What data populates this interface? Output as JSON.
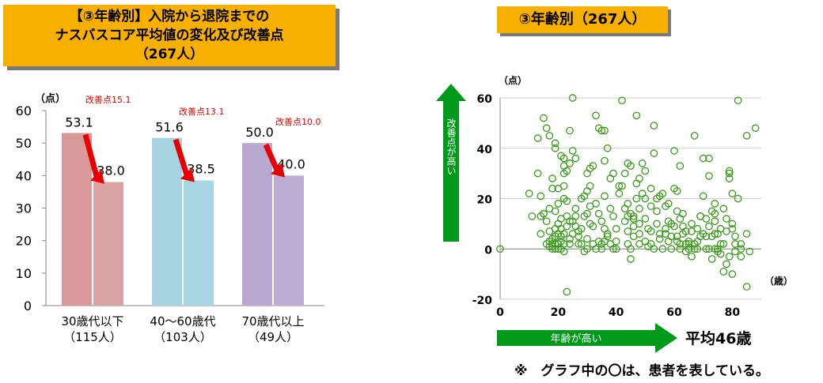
{
  "bar_title": {
    "line1": "【③年齢別】入院から退院までの",
    "line2": "ナスバスコア平均値の変化及び改善点",
    "line3": "（267人）"
  },
  "scatter_title": "③年齢別（267人）",
  "note": "※　グラフ中の〇は、患者を表している。",
  "avg_label": "平均46歳",
  "age_arrow_label": "年齢が高い",
  "improve_arrow_label": "改善点が高い",
  "colors": {
    "title_bg": "#f8b000",
    "arrow_green": "#009a1a",
    "improve_red": "#e60000",
    "scatter_point": "#3a9a1a"
  },
  "chart_data": [
    {
      "type": "bar",
      "ylabel": "（点）",
      "ylim": [
        0,
        60
      ],
      "yticks": [
        "0",
        "10",
        "20",
        "30",
        "40",
        "50",
        "60"
      ],
      "categories": [
        {
          "line1": "30歳代以下",
          "line2": "（115人）"
        },
        {
          "line1": "40～60歳代",
          "line2": "（103人）"
        },
        {
          "line1": "70歳代以上",
          "line2": "（49人）"
        }
      ],
      "before": [
        53.1,
        51.6,
        50.0
      ],
      "after": [
        38.0,
        38.5,
        40.0
      ],
      "before_labels": [
        "53.1",
        "51.6",
        "50.0"
      ],
      "after_labels": [
        "38.0",
        "38.5",
        "40.0"
      ],
      "improvement_labels": [
        "改善点15.1",
        "改善点13.1",
        "改善点10.0"
      ],
      "before_colors": [
        "#d99999",
        "#a6d4e2",
        "#b9a8d0"
      ],
      "after_colors": [
        "#d9a3a3",
        "#a9d6e4",
        "#bcabd3"
      ]
    },
    {
      "type": "scatter",
      "xlabel": "（歳）",
      "ylabel": "（点）",
      "xlim": [
        0,
        90
      ],
      "ylim": [
        -20,
        60
      ],
      "xticks": [
        "0",
        "20",
        "40",
        "60",
        "80"
      ],
      "yticks": [
        "-20",
        "0",
        "20",
        "40",
        "60"
      ],
      "grid": true,
      "points": [
        [
          0,
          0
        ],
        [
          10,
          22
        ],
        [
          11,
          13
        ],
        [
          13,
          44
        ],
        [
          14,
          21
        ],
        [
          14,
          13
        ],
        [
          15,
          52
        ],
        [
          15,
          14
        ],
        [
          16,
          48
        ],
        [
          17,
          16
        ],
        [
          17,
          45
        ],
        [
          17,
          3
        ],
        [
          17,
          7
        ],
        [
          18,
          0
        ],
        [
          18,
          2
        ],
        [
          18,
          4
        ],
        [
          18,
          24
        ],
        [
          19,
          42
        ],
        [
          19,
          40
        ],
        [
          19,
          2
        ],
        [
          19,
          8
        ],
        [
          19,
          15
        ],
        [
          20,
          24
        ],
        [
          20,
          0
        ],
        [
          20,
          2
        ],
        [
          20,
          6
        ],
        [
          20,
          18
        ],
        [
          21,
          37
        ],
        [
          21,
          0
        ],
        [
          21,
          3
        ],
        [
          21,
          8
        ],
        [
          22,
          36
        ],
        [
          22,
          33
        ],
        [
          22,
          30
        ],
        [
          22,
          20
        ],
        [
          22,
          6
        ],
        [
          22,
          2
        ],
        [
          22,
          -1
        ],
        [
          23,
          31
        ],
        [
          23,
          19
        ],
        [
          23,
          9
        ],
        [
          23,
          -17
        ],
        [
          24,
          47
        ],
        [
          24,
          34
        ],
        [
          24,
          4
        ],
        [
          24,
          2
        ],
        [
          25,
          60
        ],
        [
          25,
          39
        ],
        [
          25,
          11
        ],
        [
          25,
          6
        ],
        [
          26,
          36
        ],
        [
          26,
          13
        ],
        [
          27,
          2
        ],
        [
          27,
          7
        ],
        [
          28,
          8
        ],
        [
          28,
          20
        ],
        [
          29,
          -1
        ],
        [
          29,
          13
        ],
        [
          30,
          23
        ],
        [
          30,
          30
        ],
        [
          30,
          0
        ],
        [
          30,
          4
        ],
        [
          31,
          32
        ],
        [
          31,
          25
        ],
        [
          31,
          10
        ],
        [
          32,
          33
        ],
        [
          32,
          9
        ],
        [
          32,
          2
        ],
        [
          33,
          53
        ],
        [
          33,
          18
        ],
        [
          34,
          48
        ],
        [
          34,
          14
        ],
        [
          34,
          3
        ],
        [
          35,
          47
        ],
        [
          35,
          11
        ],
        [
          35,
          0
        ],
        [
          36,
          47
        ],
        [
          36,
          21
        ],
        [
          36,
          8
        ],
        [
          36,
          3
        ],
        [
          37,
          40
        ],
        [
          37,
          5
        ],
        [
          38,
          28
        ],
        [
          38,
          16
        ],
        [
          38,
          2
        ],
        [
          39,
          30
        ],
        [
          39,
          0
        ],
        [
          40,
          8
        ],
        [
          40,
          3
        ],
        [
          41,
          22
        ],
        [
          42,
          59
        ],
        [
          42,
          25
        ],
        [
          43,
          16
        ],
        [
          43,
          11
        ],
        [
          44,
          34
        ],
        [
          44,
          18
        ],
        [
          44,
          7
        ],
        [
          44,
          2
        ],
        [
          45,
          33
        ],
        [
          45,
          14
        ],
        [
          45,
          -4
        ],
        [
          46,
          13
        ],
        [
          46,
          9
        ],
        [
          46,
          5
        ],
        [
          47,
          53
        ],
        [
          47,
          26
        ],
        [
          47,
          20
        ],
        [
          48,
          28
        ],
        [
          48,
          16
        ],
        [
          48,
          10
        ],
        [
          49,
          34
        ],
        [
          49,
          22
        ],
        [
          50,
          31
        ],
        [
          50,
          12
        ],
        [
          51,
          8
        ],
        [
          51,
          1
        ],
        [
          52,
          7
        ],
        [
          52,
          2
        ],
        [
          53,
          49
        ],
        [
          53,
          38
        ],
        [
          53,
          0
        ],
        [
          54,
          20
        ],
        [
          54,
          15
        ],
        [
          55,
          21
        ],
        [
          55,
          6
        ],
        [
          56,
          22
        ],
        [
          56,
          0
        ],
        [
          57,
          17
        ],
        [
          57,
          8
        ],
        [
          58,
          18
        ],
        [
          58,
          3
        ],
        [
          59,
          10
        ],
        [
          59,
          0
        ],
        [
          60,
          39
        ],
        [
          60,
          24
        ],
        [
          60,
          9
        ],
        [
          61,
          23
        ],
        [
          61,
          15
        ],
        [
          61,
          5
        ],
        [
          62,
          33
        ],
        [
          62,
          12
        ],
        [
          62,
          2
        ],
        [
          63,
          9
        ],
        [
          63,
          6
        ],
        [
          64,
          7
        ],
        [
          64,
          -1
        ],
        [
          65,
          3
        ],
        [
          65,
          0
        ],
        [
          66,
          7
        ],
        [
          66,
          -3
        ],
        [
          67,
          45
        ],
        [
          67,
          2
        ],
        [
          68,
          3
        ],
        [
          68,
          0
        ],
        [
          69,
          13
        ],
        [
          69,
          5
        ],
        [
          70,
          36
        ],
        [
          70,
          21
        ],
        [
          71,
          5
        ],
        [
          71,
          0
        ],
        [
          72,
          36
        ],
        [
          72,
          29
        ],
        [
          72,
          0
        ],
        [
          73,
          15
        ],
        [
          73,
          -4
        ],
        [
          74,
          18
        ],
        [
          74,
          11
        ],
        [
          74,
          6
        ],
        [
          74,
          0
        ],
        [
          75,
          6
        ],
        [
          75,
          -1
        ],
        [
          76,
          8
        ],
        [
          76,
          2
        ],
        [
          77,
          -9
        ],
        [
          77,
          2
        ],
        [
          78,
          12
        ],
        [
          78,
          -6
        ],
        [
          79,
          30
        ],
        [
          79,
          -3
        ],
        [
          80,
          22
        ],
        [
          80,
          8
        ],
        [
          80,
          -10
        ],
        [
          81,
          2
        ],
        [
          81,
          -1
        ],
        [
          82,
          59
        ],
        [
          82,
          20
        ],
        [
          83,
          2
        ],
        [
          83,
          -3
        ],
        [
          85,
          45
        ],
        [
          85,
          6
        ],
        [
          85,
          -15
        ],
        [
          88,
          48
        ],
        [
          79,
          31
        ],
        [
          79,
          28
        ],
        [
          75,
          0
        ],
        [
          73,
          5
        ],
        [
          72,
          9
        ],
        [
          69,
          13
        ],
        [
          66,
          10
        ],
        [
          63,
          14
        ],
        [
          58,
          11
        ],
        [
          57,
          6
        ],
        [
          55,
          4
        ],
        [
          52,
          24
        ],
        [
          50,
          20
        ],
        [
          48,
          6
        ],
        [
          46,
          12
        ],
        [
          43,
          30
        ],
        [
          41,
          25
        ],
        [
          39,
          13
        ],
        [
          37,
          6
        ],
        [
          35,
          2
        ],
        [
          33,
          0
        ],
        [
          31,
          17
        ],
        [
          29,
          21
        ],
        [
          27,
          5
        ],
        [
          26,
          16
        ],
        [
          24,
          11
        ],
        [
          21,
          5
        ],
        [
          20,
          10
        ],
        [
          19,
          0
        ],
        [
          18,
          28
        ],
        [
          16,
          11
        ],
        [
          13,
          30
        ],
        [
          61,
          3
        ],
        [
          64,
          2
        ],
        [
          67,
          0
        ],
        [
          70,
          6
        ],
        [
          76,
          -2
        ],
        [
          78,
          7
        ],
        [
          81,
          5
        ],
        [
          40,
          0
        ],
        [
          45,
          0
        ],
        [
          50,
          3
        ],
        [
          54,
          10
        ],
        [
          59,
          5
        ],
        [
          62,
          0
        ],
        [
          65,
          2
        ],
        [
          68,
          8
        ],
        [
          71,
          12
        ],
        [
          74,
          14
        ],
        [
          77,
          16
        ],
        [
          80,
          10
        ],
        [
          83,
          0
        ],
        [
          86,
          -1
        ],
        [
          30,
          14
        ],
        [
          28,
          2
        ],
        [
          26,
          9
        ],
        [
          23,
          13
        ],
        [
          22,
          25
        ],
        [
          21,
          12
        ],
        [
          20,
          2
        ],
        [
          19,
          5
        ],
        [
          18,
          1
        ],
        [
          17,
          1
        ],
        [
          16,
          2
        ],
        [
          15,
          14
        ],
        [
          14,
          6
        ],
        [
          36,
          35
        ],
        [
          44,
          13
        ],
        [
          48,
          2
        ],
        [
          52,
          17
        ]
      ]
    }
  ]
}
